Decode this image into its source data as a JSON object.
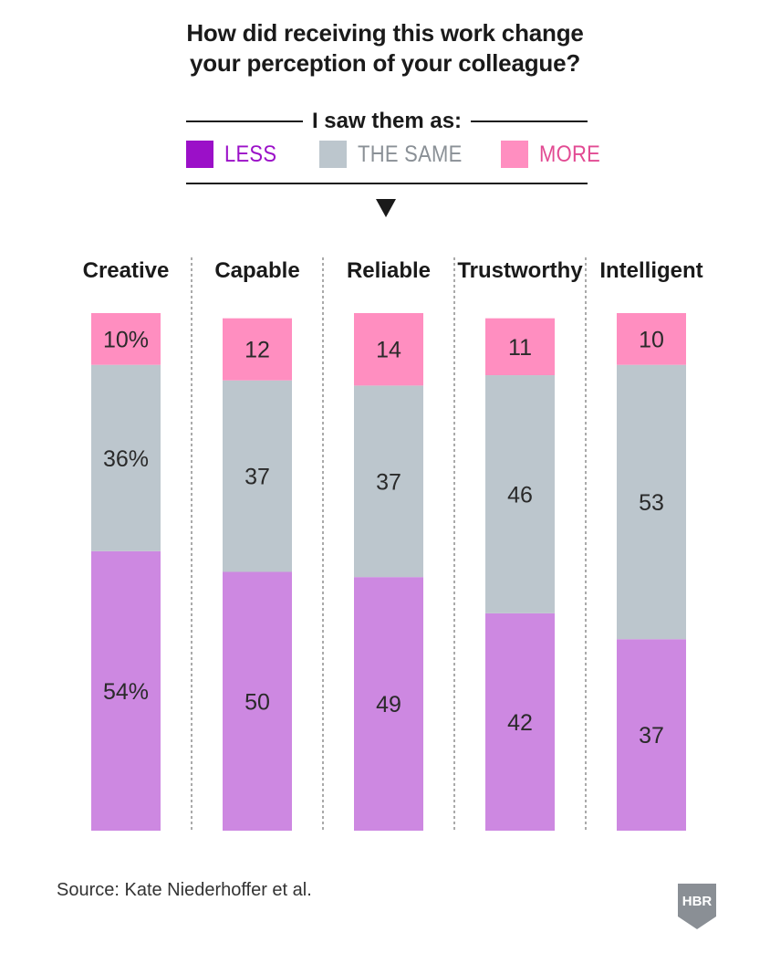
{
  "title": {
    "line1": "How did receiving this work change",
    "line2": "your perception of your colleague?"
  },
  "subhead": "I saw them as:",
  "legend": [
    {
      "key": "less",
      "label": "LESS",
      "swatch_color": "#9b10c8",
      "label_color": "#9b10c8"
    },
    {
      "key": "same",
      "label": "THE SAME",
      "swatch_color": "#bcc6cd",
      "label_color": "#8a9096"
    },
    {
      "key": "more",
      "label": "MORE",
      "swatch_color": "#ff8ec0",
      "label_color": "#e24b93"
    }
  ],
  "colors": {
    "less": "#cd88e1",
    "same": "#bcc6cd",
    "more": "#ff8ec0",
    "divider": "#555555"
  },
  "chart_data": {
    "type": "bar",
    "stacked": true,
    "orientation": "vertical",
    "categories": [
      "Creative",
      "Capable",
      "Reliable",
      "Trustworthy",
      "Intelligent"
    ],
    "series": [
      {
        "name": "LESS",
        "key": "less",
        "values": [
          54,
          50,
          49,
          42,
          37
        ],
        "labels": [
          "54%",
          "50",
          "49",
          "42",
          "37"
        ]
      },
      {
        "name": "THE SAME",
        "key": "same",
        "values": [
          36,
          37,
          37,
          46,
          53
        ],
        "labels": [
          "36%",
          "37",
          "37",
          "46",
          "53"
        ]
      },
      {
        "name": "MORE",
        "key": "more",
        "values": [
          10,
          12,
          14,
          11,
          10
        ],
        "labels": [
          "10%",
          "12",
          "14",
          "11",
          "10"
        ]
      }
    ],
    "title": "How did receiving this work change your perception of your colleague?",
    "ylim": [
      0,
      100
    ],
    "grid": false,
    "legend": "top-center"
  },
  "source": "Source: Kate Niederhoffer et al.",
  "logo_text": "HBR"
}
